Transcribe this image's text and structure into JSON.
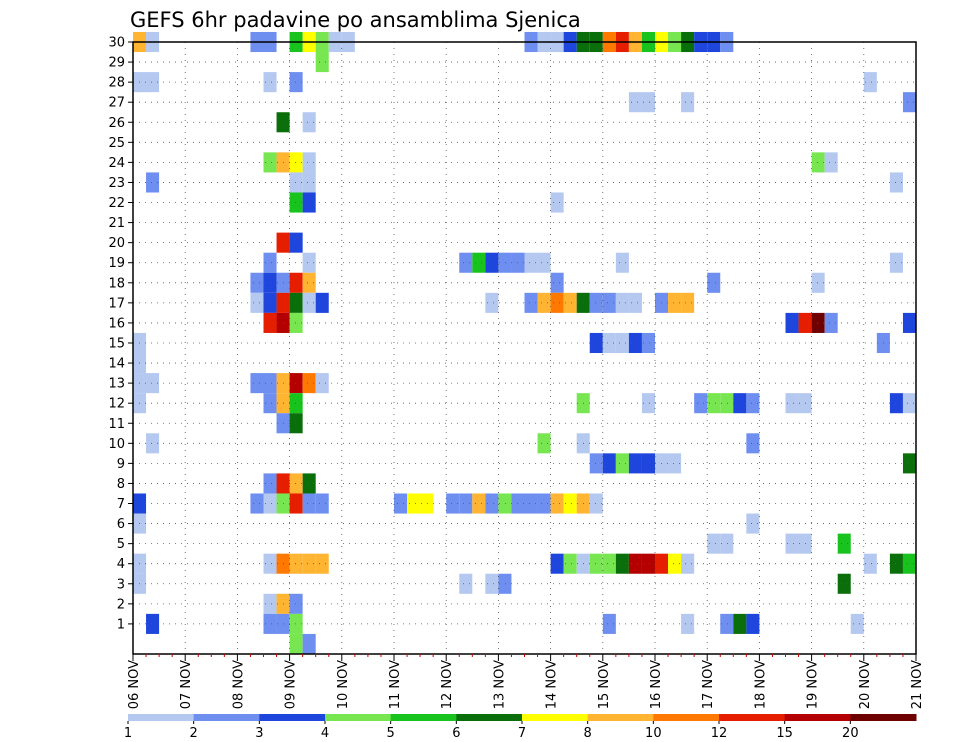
{
  "chart_data": {
    "type": "heatmap",
    "title": "GEFS 6hr padavine po ansamblima Sjenica",
    "x_labels": [
      "06 NOV",
      "07 NOV",
      "08 NOV",
      "09 NOV",
      "10 NOV",
      "11 NOV",
      "12 NOV",
      "13 NOV",
      "14 NOV",
      "15 NOV",
      "16 NOV",
      "17 NOV",
      "18 NOV",
      "19 NOV",
      "20 NOV",
      "21 NOV"
    ],
    "y_labels": [
      "1",
      "2",
      "3",
      "4",
      "5",
      "6",
      "7",
      "8",
      "9",
      "10",
      "11",
      "12",
      "13",
      "14",
      "15",
      "16",
      "17",
      "18",
      "19",
      "20",
      "21",
      "22",
      "23",
      "24",
      "25",
      "26",
      "27",
      "28",
      "29",
      "30"
    ],
    "time_steps": 60,
    "members": 30,
    "legend_labels": [
      "1",
      "2",
      "3",
      "4",
      "5",
      "6",
      "7",
      "8",
      "10",
      "12",
      "15",
      "20"
    ],
    "legend_colors": [
      "#b4c8f0",
      "#6e8ef0",
      "#1e46dc",
      "#78e650",
      "#19c31e",
      "#0a6e0a",
      "#ffff00",
      "#ffb432",
      "#ff7800",
      "#e61e00",
      "#b40000",
      "#6e0000"
    ],
    "cells": [
      [
        0,
        30,
        8
      ],
      [
        1,
        30,
        1
      ],
      [
        9,
        30,
        2
      ],
      [
        10,
        30,
        2
      ],
      [
        12,
        30,
        5
      ],
      [
        13,
        30,
        7
      ],
      [
        14,
        30,
        4
      ],
      [
        15,
        30,
        1
      ],
      [
        16,
        30,
        1
      ],
      [
        30,
        30,
        2
      ],
      [
        31,
        30,
        1
      ],
      [
        32,
        30,
        1
      ],
      [
        33,
        30,
        3
      ],
      [
        34,
        30,
        6
      ],
      [
        35,
        30,
        6
      ],
      [
        36,
        30,
        9
      ],
      [
        37,
        30,
        10
      ],
      [
        38,
        30,
        8
      ],
      [
        39,
        30,
        5
      ],
      [
        40,
        30,
        7
      ],
      [
        41,
        30,
        4
      ],
      [
        42,
        30,
        6
      ],
      [
        43,
        30,
        3
      ],
      [
        44,
        30,
        3
      ],
      [
        45,
        30,
        2
      ],
      [
        14,
        29,
        4
      ],
      [
        0,
        28,
        1
      ],
      [
        1,
        28,
        1
      ],
      [
        10,
        28,
        1
      ],
      [
        12,
        28,
        2
      ],
      [
        56,
        28,
        1
      ],
      [
        38,
        27,
        1
      ],
      [
        39,
        27,
        1
      ],
      [
        42,
        27,
        1
      ],
      [
        59,
        27,
        2
      ],
      [
        11,
        26,
        6
      ],
      [
        13,
        26,
        1
      ],
      [
        10,
        24,
        4
      ],
      [
        11,
        24,
        8
      ],
      [
        12,
        24,
        7
      ],
      [
        13,
        24,
        1
      ],
      [
        52,
        24,
        4
      ],
      [
        53,
        24,
        1
      ],
      [
        1,
        23,
        2
      ],
      [
        12,
        23,
        1
      ],
      [
        13,
        23,
        1
      ],
      [
        58,
        23,
        1
      ],
      [
        12,
        22,
        5
      ],
      [
        13,
        22,
        3
      ],
      [
        32,
        22,
        1
      ],
      [
        12,
        20,
        3
      ],
      [
        11,
        20,
        10
      ],
      [
        10,
        19,
        2
      ],
      [
        13,
        19,
        1
      ],
      [
        25,
        19,
        2
      ],
      [
        26,
        19,
        5
      ],
      [
        27,
        19,
        3
      ],
      [
        28,
        19,
        2
      ],
      [
        29,
        19,
        2
      ],
      [
        30,
        19,
        1
      ],
      [
        31,
        19,
        1
      ],
      [
        37,
        19,
        1
      ],
      [
        58,
        19,
        1
      ],
      [
        9,
        18,
        2
      ],
      [
        10,
        18,
        3
      ],
      [
        11,
        18,
        2
      ],
      [
        12,
        18,
        10
      ],
      [
        13,
        18,
        8
      ],
      [
        32,
        18,
        2
      ],
      [
        44,
        18,
        2
      ],
      [
        52,
        18,
        1
      ],
      [
        9,
        17,
        1
      ],
      [
        10,
        17,
        3
      ],
      [
        11,
        17,
        10
      ],
      [
        12,
        17,
        6
      ],
      [
        13,
        17,
        1
      ],
      [
        14,
        17,
        3
      ],
      [
        27,
        17,
        1
      ],
      [
        30,
        17,
        2
      ],
      [
        31,
        17,
        8
      ],
      [
        32,
        17,
        9
      ],
      [
        33,
        17,
        8
      ],
      [
        34,
        17,
        6
      ],
      [
        35,
        17,
        2
      ],
      [
        36,
        17,
        2
      ],
      [
        37,
        17,
        1
      ],
      [
        38,
        17,
        1
      ],
      [
        40,
        17,
        2
      ],
      [
        41,
        17,
        8
      ],
      [
        42,
        17,
        8
      ],
      [
        10,
        16,
        10
      ],
      [
        11,
        16,
        11
      ],
      [
        12,
        16,
        4
      ],
      [
        50,
        16,
        3
      ],
      [
        51,
        16,
        10
      ],
      [
        52,
        16,
        12
      ],
      [
        53,
        16,
        2
      ],
      [
        59,
        16,
        3
      ],
      [
        0,
        15,
        1
      ],
      [
        35,
        15,
        3
      ],
      [
        36,
        15,
        1
      ],
      [
        37,
        15,
        1
      ],
      [
        38,
        15,
        3
      ],
      [
        39,
        15,
        2
      ],
      [
        57,
        15,
        2
      ],
      [
        0,
        14,
        1
      ],
      [
        0,
        13,
        1
      ],
      [
        1,
        13,
        1
      ],
      [
        9,
        13,
        2
      ],
      [
        10,
        13,
        2
      ],
      [
        11,
        13,
        8
      ],
      [
        12,
        13,
        11
      ],
      [
        13,
        13,
        9
      ],
      [
        14,
        13,
        1
      ],
      [
        0,
        12,
        1
      ],
      [
        10,
        12,
        2
      ],
      [
        11,
        12,
        8
      ],
      [
        12,
        12,
        5
      ],
      [
        34,
        12,
        4
      ],
      [
        39,
        12,
        1
      ],
      [
        43,
        12,
        2
      ],
      [
        44,
        12,
        4
      ],
      [
        45,
        12,
        4
      ],
      [
        46,
        12,
        3
      ],
      [
        47,
        12,
        2
      ],
      [
        50,
        12,
        1
      ],
      [
        51,
        12,
        1
      ],
      [
        58,
        12,
        3
      ],
      [
        59,
        12,
        1
      ],
      [
        11,
        11,
        2
      ],
      [
        12,
        11,
        6
      ],
      [
        1,
        10,
        1
      ],
      [
        31,
        10,
        4
      ],
      [
        34,
        10,
        1
      ],
      [
        47,
        10,
        2
      ],
      [
        35,
        9,
        2
      ],
      [
        36,
        9,
        3
      ],
      [
        37,
        9,
        4
      ],
      [
        38,
        9,
        3
      ],
      [
        39,
        9,
        3
      ],
      [
        40,
        9,
        1
      ],
      [
        41,
        9,
        1
      ],
      [
        59,
        9,
        6
      ],
      [
        10,
        8,
        2
      ],
      [
        11,
        8,
        10
      ],
      [
        12,
        8,
        8
      ],
      [
        13,
        8,
        6
      ],
      [
        0,
        7,
        3
      ],
      [
        9,
        7,
        2
      ],
      [
        10,
        7,
        1
      ],
      [
        11,
        7,
        4
      ],
      [
        12,
        7,
        10
      ],
      [
        13,
        7,
        2
      ],
      [
        14,
        7,
        2
      ],
      [
        20,
        7,
        2
      ],
      [
        21,
        7,
        7
      ],
      [
        22,
        7,
        7
      ],
      [
        24,
        7,
        2
      ],
      [
        25,
        7,
        2
      ],
      [
        26,
        7,
        8
      ],
      [
        27,
        7,
        2
      ],
      [
        28,
        7,
        4
      ],
      [
        29,
        7,
        2
      ],
      [
        30,
        7,
        2
      ],
      [
        31,
        7,
        2
      ],
      [
        32,
        7,
        8
      ],
      [
        33,
        7,
        7
      ],
      [
        34,
        7,
        8
      ],
      [
        35,
        7,
        1
      ],
      [
        0,
        6,
        1
      ],
      [
        47,
        6,
        1
      ],
      [
        44,
        5,
        1
      ],
      [
        45,
        5,
        1
      ],
      [
        50,
        5,
        1
      ],
      [
        51,
        5,
        1
      ],
      [
        54,
        5,
        5
      ],
      [
        0,
        4,
        1
      ],
      [
        10,
        4,
        1
      ],
      [
        11,
        4,
        9
      ],
      [
        12,
        4,
        8
      ],
      [
        13,
        4,
        8
      ],
      [
        14,
        4,
        8
      ],
      [
        32,
        4,
        3
      ],
      [
        33,
        4,
        4
      ],
      [
        34,
        4,
        1
      ],
      [
        35,
        4,
        4
      ],
      [
        36,
        4,
        4
      ],
      [
        37,
        4,
        6
      ],
      [
        38,
        4,
        11
      ],
      [
        39,
        4,
        11
      ],
      [
        40,
        4,
        10
      ],
      [
        41,
        4,
        7
      ],
      [
        42,
        4,
        1
      ],
      [
        56,
        4,
        1
      ],
      [
        58,
        4,
        6
      ],
      [
        59,
        4,
        5
      ],
      [
        0,
        3,
        1
      ],
      [
        25,
        3,
        1
      ],
      [
        27,
        3,
        1
      ],
      [
        28,
        3,
        2
      ],
      [
        54,
        3,
        6
      ],
      [
        10,
        2,
        1
      ],
      [
        11,
        2,
        8
      ],
      [
        12,
        2,
        2
      ],
      [
        1,
        1,
        3
      ],
      [
        10,
        1,
        2
      ],
      [
        11,
        1,
        2
      ],
      [
        12,
        1,
        4
      ],
      [
        36,
        1,
        2
      ],
      [
        42,
        1,
        1
      ],
      [
        45,
        1,
        2
      ],
      [
        46,
        1,
        6
      ],
      [
        47,
        1,
        3
      ],
      [
        55,
        1,
        1
      ],
      [
        12,
        0,
        4
      ],
      [
        13,
        0,
        2
      ]
    ]
  }
}
